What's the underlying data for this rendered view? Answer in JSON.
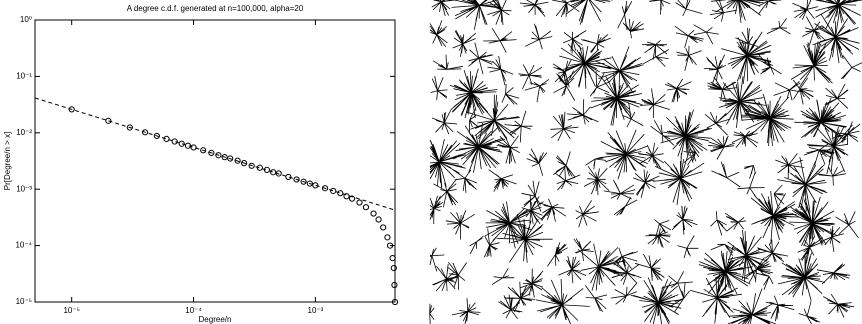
{
  "chart_data": {
    "type": "scatter",
    "title": "A degree c.d.f. generated at n=100,000, alpha=20",
    "x_label": "Degree/n",
    "y_label": "Pr[Degree/n > x]",
    "x": [
      1e-05,
      2e-05,
      3e-05,
      4e-05,
      5e-05,
      6e-05,
      7e-05,
      8e-05,
      9e-05,
      0.0001,
      0.00012,
      0.00014,
      0.00016,
      0.00018,
      0.0002,
      0.00023,
      0.00026,
      0.0003,
      0.00035,
      0.0004,
      0.00045,
      0.0005,
      0.0006,
      0.0007,
      0.0008,
      0.0009,
      0.001,
      0.0012,
      0.0014,
      0.0016,
      0.0018,
      0.002,
      0.0023,
      0.0026,
      0.003,
      0.0033,
      0.0036,
      0.0039,
      0.0041,
      0.0043,
      0.0044,
      0.00445,
      0.0045
    ],
    "values": [
      0.026,
      0.0163,
      0.0124,
      0.0102,
      0.0088,
      0.0078,
      0.007,
      0.0064,
      0.0059,
      0.0055,
      0.0049,
      0.0044,
      0.004,
      0.0037,
      0.0035,
      0.0032,
      0.0029,
      0.0026,
      0.0024,
      0.0022,
      0.002,
      0.0019,
      0.00165,
      0.00149,
      0.00136,
      0.00126,
      0.00117,
      0.00104,
      0.00093,
      0.00085,
      0.00075,
      0.00068,
      0.00058,
      0.00048,
      0.00037,
      0.00029,
      0.00021,
      0.00014,
      0.0001,
      6e-05,
      4e-05,
      2e-05,
      1e-05
    ],
    "marker": "circle",
    "color": "#000000",
    "fit": {
      "x": [
        5e-06,
        0.0045
      ],
      "values": [
        0.0415,
        0.000426
      ],
      "line_style": "dashed",
      "color": "#000000"
    },
    "x_scale": "log",
    "y_scale": "log",
    "xlim": [
      5e-06,
      0.0045
    ],
    "ylim": [
      1e-05,
      1
    ],
    "xticks": [
      {
        "value": 1e-05,
        "label": "10⁻⁵"
      },
      {
        "value": 0.0001,
        "label": "10⁻⁴"
      },
      {
        "value": 0.001,
        "label": "10⁻³"
      }
    ],
    "yticks": [
      {
        "value": 1e-05,
        "label": "10⁻⁵"
      },
      {
        "value": 0.0001,
        "label": "10⁻⁴"
      },
      {
        "value": 0.001,
        "label": "10⁻³"
      },
      {
        "value": 0.01,
        "label": "10⁻²"
      },
      {
        "value": 0.1,
        "label": "10⁻¹"
      },
      {
        "value": 1,
        "label": "10⁰"
      }
    ],
    "grid": false
  }
}
